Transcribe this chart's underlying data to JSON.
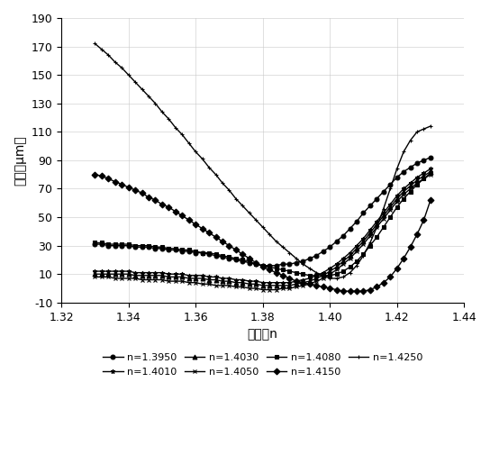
{
  "title": "",
  "xlabel": "折射率n",
  "ylabel": "球差（μm）",
  "xlim": [
    1.32,
    1.44
  ],
  "ylim": [
    -10,
    190
  ],
  "xticks": [
    1.32,
    1.34,
    1.36,
    1.38,
    1.4,
    1.42,
    1.44
  ],
  "yticks": [
    -10,
    10,
    30,
    50,
    70,
    90,
    110,
    130,
    150,
    170,
    190
  ],
  "background_color": "#ffffff",
  "series": [
    {
      "label": "n=1.3950",
      "marker": "o",
      "x": [
        1.33,
        1.332,
        1.334,
        1.336,
        1.338,
        1.34,
        1.342,
        1.344,
        1.346,
        1.348,
        1.35,
        1.352,
        1.354,
        1.356,
        1.358,
        1.36,
        1.362,
        1.364,
        1.366,
        1.368,
        1.37,
        1.372,
        1.374,
        1.376,
        1.378,
        1.38,
        1.382,
        1.384,
        1.386,
        1.388,
        1.39,
        1.392,
        1.394,
        1.396,
        1.398,
        1.4,
        1.402,
        1.404,
        1.406,
        1.408,
        1.41,
        1.412,
        1.414,
        1.416,
        1.418,
        1.42,
        1.422,
        1.424,
        1.426,
        1.428,
        1.43
      ],
      "y": [
        31,
        31,
        30,
        30,
        30,
        30,
        29,
        29,
        29,
        28,
        28,
        27,
        27,
        26,
        26,
        25,
        25,
        24,
        23,
        22,
        21,
        20,
        19,
        18,
        17,
        16,
        16,
        16,
        17,
        17,
        18,
        19,
        21,
        23,
        26,
        29,
        33,
        37,
        42,
        47,
        53,
        58,
        63,
        68,
        73,
        78,
        82,
        85,
        88,
        90,
        92
      ]
    },
    {
      "label": "n=1.4010",
      "marker": "*",
      "x": [
        1.33,
        1.332,
        1.334,
        1.336,
        1.338,
        1.34,
        1.342,
        1.344,
        1.346,
        1.348,
        1.35,
        1.352,
        1.354,
        1.356,
        1.358,
        1.36,
        1.362,
        1.364,
        1.366,
        1.368,
        1.37,
        1.372,
        1.374,
        1.376,
        1.378,
        1.38,
        1.382,
        1.384,
        1.386,
        1.388,
        1.39,
        1.392,
        1.394,
        1.396,
        1.398,
        1.4,
        1.402,
        1.404,
        1.406,
        1.408,
        1.41,
        1.412,
        1.414,
        1.416,
        1.418,
        1.42,
        1.422,
        1.424,
        1.426,
        1.428,
        1.43
      ],
      "y": [
        12,
        12,
        12,
        12,
        12,
        12,
        11,
        11,
        11,
        11,
        11,
        10,
        10,
        10,
        9,
        9,
        9,
        8,
        8,
        7,
        7,
        6,
        6,
        5,
        5,
        4,
        4,
        4,
        4,
        4,
        5,
        6,
        7,
        9,
        11,
        14,
        17,
        21,
        25,
        30,
        35,
        41,
        47,
        53,
        59,
        65,
        70,
        74,
        78,
        81,
        84
      ]
    },
    {
      "label": "n=1.4030",
      "marker": "^",
      "x": [
        1.33,
        1.332,
        1.334,
        1.336,
        1.338,
        1.34,
        1.342,
        1.344,
        1.346,
        1.348,
        1.35,
        1.352,
        1.354,
        1.356,
        1.358,
        1.36,
        1.362,
        1.364,
        1.366,
        1.368,
        1.37,
        1.372,
        1.374,
        1.376,
        1.378,
        1.38,
        1.382,
        1.384,
        1.386,
        1.388,
        1.39,
        1.392,
        1.394,
        1.396,
        1.398,
        1.4,
        1.402,
        1.404,
        1.406,
        1.408,
        1.41,
        1.412,
        1.414,
        1.416,
        1.418,
        1.42,
        1.422,
        1.424,
        1.426,
        1.428,
        1.43
      ],
      "y": [
        10,
        10,
        10,
        10,
        10,
        10,
        9,
        9,
        9,
        9,
        9,
        8,
        8,
        8,
        7,
        7,
        7,
        6,
        6,
        5,
        5,
        4,
        4,
        3,
        3,
        2,
        2,
        2,
        2,
        2,
        3,
        4,
        5,
        7,
        9,
        12,
        15,
        19,
        23,
        28,
        33,
        39,
        45,
        51,
        57,
        63,
        68,
        72,
        76,
        79,
        82
      ]
    },
    {
      "label": "n=1.4050",
      "marker": "x",
      "x": [
        1.33,
        1.332,
        1.334,
        1.336,
        1.338,
        1.34,
        1.342,
        1.344,
        1.346,
        1.348,
        1.35,
        1.352,
        1.354,
        1.356,
        1.358,
        1.36,
        1.362,
        1.364,
        1.366,
        1.368,
        1.37,
        1.372,
        1.374,
        1.376,
        1.378,
        1.38,
        1.382,
        1.384,
        1.386,
        1.388,
        1.39,
        1.392,
        1.394,
        1.396,
        1.398,
        1.4,
        1.402,
        1.404,
        1.406,
        1.408,
        1.41,
        1.412,
        1.414,
        1.416,
        1.418,
        1.42,
        1.422,
        1.424,
        1.426,
        1.428,
        1.43
      ],
      "y": [
        8,
        8,
        8,
        7,
        7,
        7,
        7,
        6,
        6,
        6,
        6,
        5,
        5,
        5,
        4,
        4,
        3,
        3,
        2,
        2,
        2,
        1,
        1,
        0,
        0,
        -1,
        -1,
        -1,
        0,
        0,
        1,
        2,
        3,
        5,
        7,
        10,
        13,
        17,
        21,
        26,
        31,
        37,
        43,
        49,
        55,
        61,
        66,
        70,
        74,
        77,
        80
      ]
    },
    {
      "label": "n=1.4080",
      "marker": "s",
      "x": [
        1.33,
        1.332,
        1.334,
        1.336,
        1.338,
        1.34,
        1.342,
        1.344,
        1.346,
        1.348,
        1.35,
        1.352,
        1.354,
        1.356,
        1.358,
        1.36,
        1.362,
        1.364,
        1.366,
        1.368,
        1.37,
        1.372,
        1.374,
        1.376,
        1.378,
        1.38,
        1.382,
        1.384,
        1.386,
        1.388,
        1.39,
        1.392,
        1.394,
        1.396,
        1.398,
        1.4,
        1.402,
        1.404,
        1.406,
        1.408,
        1.41,
        1.412,
        1.414,
        1.416,
        1.418,
        1.42,
        1.422,
        1.424,
        1.426,
        1.428,
        1.43
      ],
      "y": [
        32,
        32,
        31,
        31,
        31,
        31,
        30,
        30,
        30,
        29,
        29,
        28,
        28,
        27,
        27,
        26,
        25,
        25,
        24,
        23,
        22,
        21,
        20,
        19,
        17,
        16,
        15,
        14,
        13,
        12,
        11,
        10,
        9,
        9,
        9,
        9,
        10,
        12,
        15,
        19,
        24,
        30,
        36,
        43,
        50,
        57,
        63,
        68,
        73,
        77,
        81
      ]
    },
    {
      "label": "n=1.4150",
      "marker": "D",
      "x": [
        1.33,
        1.332,
        1.334,
        1.336,
        1.338,
        1.34,
        1.342,
        1.344,
        1.346,
        1.348,
        1.35,
        1.352,
        1.354,
        1.356,
        1.358,
        1.36,
        1.362,
        1.364,
        1.366,
        1.368,
        1.37,
        1.372,
        1.374,
        1.376,
        1.378,
        1.38,
        1.382,
        1.384,
        1.386,
        1.388,
        1.39,
        1.392,
        1.394,
        1.396,
        1.398,
        1.4,
        1.402,
        1.404,
        1.406,
        1.408,
        1.41,
        1.412,
        1.414,
        1.416,
        1.418,
        1.42,
        1.422,
        1.424,
        1.426,
        1.428,
        1.43
      ],
      "y": [
        80,
        79,
        77,
        75,
        73,
        71,
        69,
        67,
        64,
        62,
        59,
        57,
        54,
        51,
        48,
        45,
        42,
        39,
        36,
        33,
        30,
        27,
        24,
        21,
        18,
        15,
        13,
        11,
        9,
        7,
        5,
        4,
        3,
        2,
        1,
        0,
        -1,
        -2,
        -2,
        -2,
        -2,
        -1,
        1,
        4,
        8,
        14,
        21,
        29,
        38,
        48,
        62
      ]
    },
    {
      "label": "n=1.4250",
      "marker": "+",
      "x": [
        1.33,
        1.332,
        1.334,
        1.336,
        1.338,
        1.34,
        1.342,
        1.344,
        1.346,
        1.348,
        1.35,
        1.352,
        1.354,
        1.356,
        1.358,
        1.36,
        1.362,
        1.364,
        1.366,
        1.368,
        1.37,
        1.372,
        1.374,
        1.376,
        1.378,
        1.38,
        1.382,
        1.384,
        1.386,
        1.388,
        1.39,
        1.392,
        1.394,
        1.396,
        1.398,
        1.4,
        1.402,
        1.404,
        1.406,
        1.408,
        1.41,
        1.412,
        1.414,
        1.416,
        1.418,
        1.42,
        1.422,
        1.424,
        1.426,
        1.428,
        1.43
      ],
      "y": [
        172,
        168,
        164,
        159,
        155,
        150,
        145,
        140,
        135,
        130,
        124,
        119,
        113,
        108,
        102,
        96,
        91,
        85,
        80,
        74,
        69,
        63,
        58,
        53,
        48,
        43,
        38,
        33,
        29,
        25,
        21,
        17,
        14,
        11,
        9,
        7,
        7,
        8,
        11,
        16,
        23,
        32,
        43,
        56,
        70,
        84,
        96,
        104,
        110,
        112,
        114
      ]
    }
  ],
  "grid_color": "#c8c8c8",
  "line_color": "#000000",
  "legend_rows": [
    [
      "n=1.3950",
      "n=1.4010",
      "n=1.4030",
      "n=1.4050"
    ],
    [
      "n=1.4080",
      "n=1.4150",
      "n=1.4250"
    ]
  ]
}
